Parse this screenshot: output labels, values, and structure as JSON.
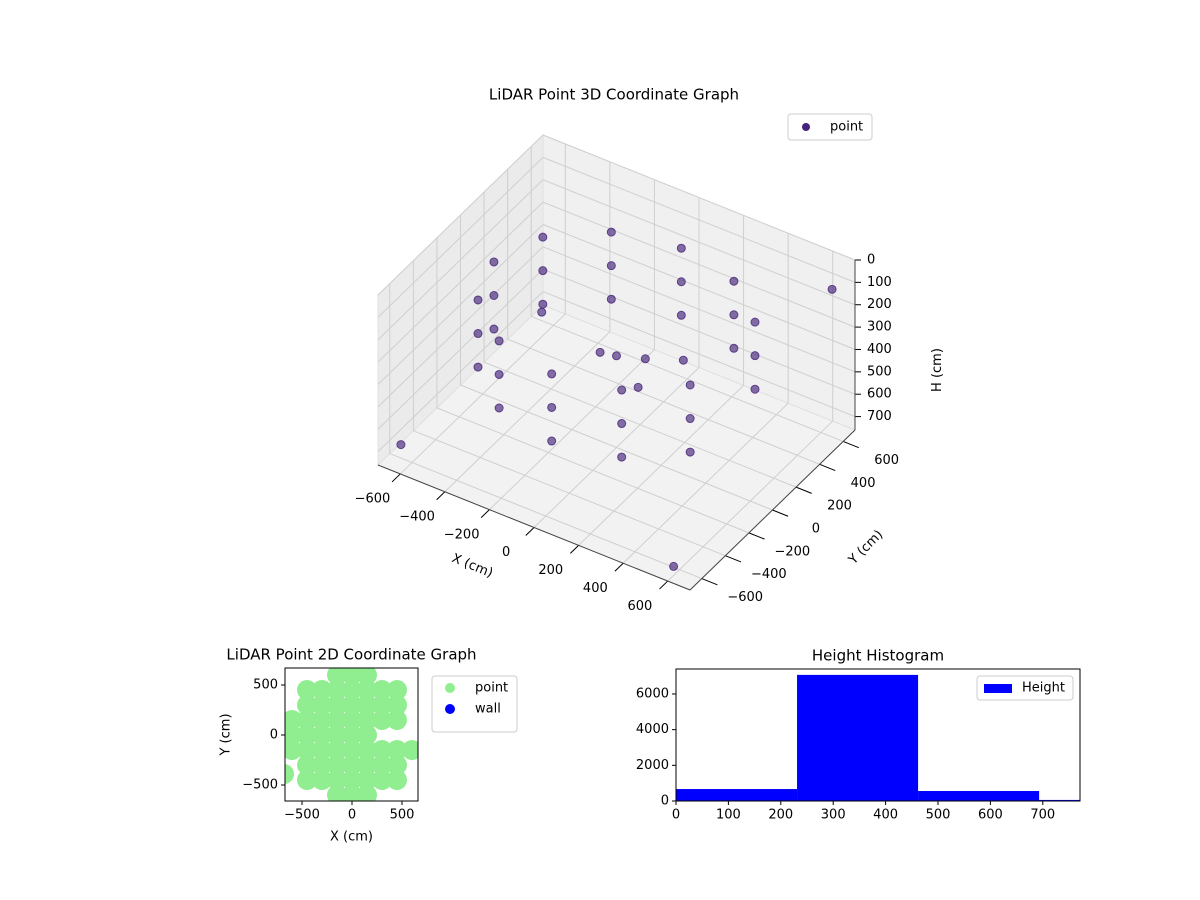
{
  "chart_data": [
    {
      "type": "scatter3d",
      "title": "LiDAR Point 3D Coordinate Graph",
      "xlabel": "X (cm)",
      "ylabel": "Y (cm)",
      "zlabel": "H (cm)",
      "xlim": [
        -700,
        700
      ],
      "ylim": [
        -700,
        700
      ],
      "zlim": [
        760,
        0
      ],
      "xticks": [
        {
          "value": -600,
          "label": "−600"
        },
        {
          "value": -400,
          "label": "−400"
        },
        {
          "value": -200,
          "label": "−200"
        },
        0,
        200,
        400,
        600
      ],
      "yticks": [
        {
          "value": -600,
          "label": "−600"
        },
        {
          "value": -400,
          "label": "−400"
        },
        {
          "value": -200,
          "label": "−200"
        },
        0,
        200,
        400,
        600
      ],
      "zticks": [
        0,
        100,
        200,
        300,
        400,
        500,
        600,
        700
      ],
      "grid": true,
      "legend": "upper right",
      "series": [
        {
          "name": "point",
          "color": "#45237a",
          "x": [
            476,
            275,
            0,
            -275,
            -476,
            -550,
            -476,
            -275,
            0,
            275,
            476,
            476,
            275,
            0,
            -275,
            -476,
            -550,
            -476,
            -275,
            0,
            275,
            476,
            476,
            275,
            0,
            -275,
            -476,
            -550,
            -476,
            -275,
            0,
            275,
            476,
            0,
            -100,
            150,
            300,
            50,
            -650,
            600,
            650,
            -600
          ],
          "y": [
            275,
            476,
            550,
            476,
            275,
            0,
            -275,
            -476,
            -550,
            -476,
            -275,
            275,
            476,
            550,
            476,
            275,
            0,
            -275,
            -476,
            -550,
            -476,
            -275,
            275,
            476,
            550,
            476,
            275,
            0,
            -275,
            -476,
            -550,
            -476,
            -275,
            0,
            50,
            -100,
            0,
            150,
            -600,
            -650,
            600,
            500
          ],
          "z": [
            150,
            150,
            150,
            150,
            150,
            150,
            150,
            150,
            150,
            150,
            150,
            300,
            300,
            300,
            300,
            300,
            300,
            300,
            300,
            300,
            300,
            300,
            450,
            450,
            450,
            450,
            450,
            450,
            450,
            450,
            450,
            450,
            450,
            350,
            400,
            380,
            250,
            420,
            700,
            720,
            100,
            650
          ]
        }
      ]
    },
    {
      "type": "scatter",
      "title": "LiDAR Point 2D Coordinate Graph",
      "xlabel": "X (cm)",
      "ylabel": "Y (cm)",
      "xlim": [
        -670,
        660
      ],
      "ylim": [
        -660,
        670
      ],
      "xticks": [
        {
          "value": -500,
          "label": "−500"
        },
        0,
        500
      ],
      "yticks": [
        {
          "value": -500,
          "label": "−500"
        },
        0,
        500
      ],
      "legend": "outside right",
      "series": [
        {
          "name": "point",
          "color": "#90ee90",
          "x": [
            -150,
            0,
            150,
            -450,
            -300,
            -150,
            0,
            150,
            300,
            450,
            -450,
            -300,
            -150,
            0,
            150,
            300,
            450,
            -600,
            -450,
            -300,
            -150,
            0,
            150,
            300,
            450,
            -600,
            -450,
            -300,
            -150,
            0,
            150,
            -600,
            -450,
            -300,
            -150,
            0,
            150,
            300,
            450,
            600,
            -450,
            -300,
            -150,
            0,
            150,
            300,
            450,
            -450,
            -300,
            -150,
            0,
            150,
            300,
            450,
            -150,
            0,
            150,
            -680
          ],
          "y": [
            600,
            600,
            600,
            450,
            450,
            450,
            450,
            450,
            450,
            450,
            300,
            300,
            300,
            300,
            300,
            300,
            300,
            150,
            150,
            150,
            150,
            150,
            150,
            150,
            150,
            0,
            0,
            0,
            0,
            0,
            0,
            -150,
            -150,
            -150,
            -150,
            -150,
            -150,
            -150,
            -150,
            -150,
            -300,
            -300,
            -300,
            -300,
            -300,
            -300,
            -300,
            -450,
            -450,
            -450,
            -450,
            -450,
            -450,
            -450,
            -600,
            -600,
            -600,
            -390
          ]
        },
        {
          "name": "wall",
          "color": "#0000ff",
          "x": [],
          "y": []
        }
      ]
    },
    {
      "type": "histogram",
      "title": "Height Histogram",
      "bins": [
        0,
        231,
        462,
        693,
        924
      ],
      "values": [
        670,
        7070,
        560,
        60
      ],
      "series_name": "Height",
      "color": "#0000ff",
      "xlim": [
        0,
        771
      ],
      "ylim": [
        0,
        7400
      ],
      "xticks": [
        0,
        100,
        200,
        300,
        400,
        500,
        600,
        700
      ],
      "yticks": [
        0,
        2000,
        4000,
        6000
      ],
      "legend": "upper right"
    }
  ]
}
